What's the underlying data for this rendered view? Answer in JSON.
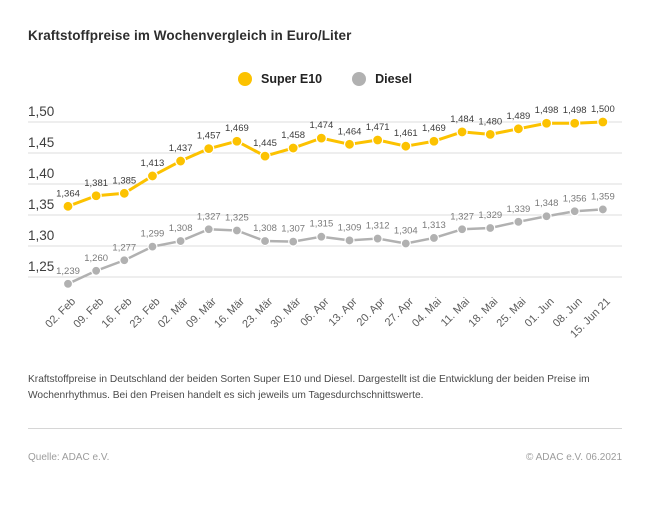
{
  "chart_data": {
    "type": "line",
    "title": "Kraftstoffpreise im Wochenvergleich in Euro/Liter",
    "categories": [
      "02. Feb",
      "09. Feb",
      "16. Feb",
      "23. Feb",
      "02. Mär",
      "09. Mär",
      "16. Mär",
      "23. Mär",
      "30. Mär",
      "06. Apr",
      "13. Apr",
      "20. Apr",
      "27. Apr",
      "04. Mai",
      "11. Mai",
      "18. Mai",
      "25. Mai",
      "01. Jun",
      "08. Jun",
      "15. Jun 21"
    ],
    "series": [
      {
        "name": "Super E10",
        "color": "#FCC200",
        "label_color": "#3c3c3c",
        "marker_radius": 5,
        "line_width": 3,
        "values": [
          1.364,
          1.381,
          1.385,
          1.413,
          1.437,
          1.457,
          1.469,
          1.445,
          1.458,
          1.474,
          1.464,
          1.471,
          1.461,
          1.469,
          1.484,
          1.48,
          1.489,
          1.498,
          1.498,
          1.5
        ]
      },
      {
        "name": "Diesel",
        "color": "#B1B1B1",
        "label_color": "#7a7a7a",
        "marker_radius": 4.5,
        "line_width": 2.5,
        "values": [
          1.239,
          1.26,
          1.277,
          1.299,
          1.308,
          1.327,
          1.325,
          1.308,
          1.307,
          1.315,
          1.309,
          1.312,
          1.304,
          1.313,
          1.327,
          1.329,
          1.339,
          1.348,
          1.356,
          1.359
        ]
      }
    ],
    "y_ticks": [
      1.5,
      1.45,
      1.4,
      1.35,
      1.3,
      1.25
    ],
    "ylim": [
      1.2,
      1.52
    ],
    "ylabel": "",
    "xlabel": "",
    "decimal_separator": ",",
    "grid": "horizontal",
    "legend_position": "top-center",
    "data_labels": true,
    "colors": {
      "gridline": "#dcdcdc",
      "y_tick_label": "#3e3e3e",
      "x_tick_label": "#5c5c5c"
    }
  },
  "description": {
    "text": "Kraftstoffpreise in Deutschland der beiden Sorten Super E10 und Diesel. Dargestellt ist die Entwicklung der beiden Preise im Wochenrhythmus. Bei den Preisen handelt es sich jeweils um Tagesdurchschnittswerte."
  },
  "footer": {
    "source": "Quelle: ADAC e.V.",
    "copyright": "© ADAC e.V. 06.2021"
  }
}
